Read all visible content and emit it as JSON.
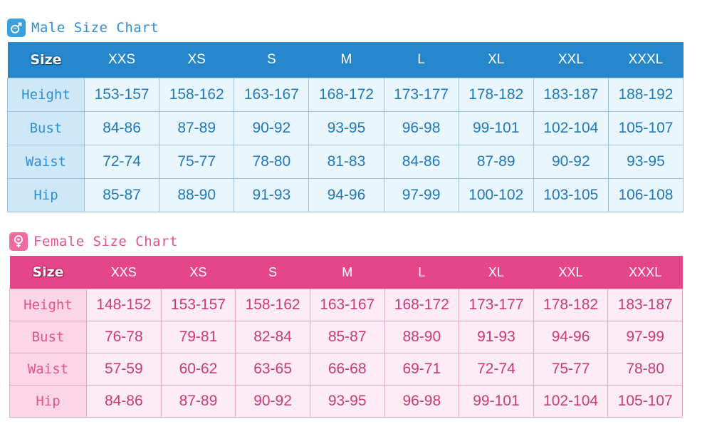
{
  "male": {
    "title": "Male Size Chart",
    "icon": "male-symbol-icon",
    "accent": "#2787cc",
    "corner_label": "Size",
    "sizes": [
      "XXS",
      "XS",
      "S",
      "M",
      "L",
      "XL",
      "XXL",
      "XXXL"
    ],
    "rows": [
      {
        "label": "Height",
        "values": [
          "153-157",
          "158-162",
          "163-167",
          "168-172",
          "173-177",
          "178-182",
          "183-187",
          "188-192"
        ]
      },
      {
        "label": "Bust",
        "values": [
          "84-86",
          "87-89",
          "90-92",
          "93-95",
          "96-98",
          "99-101",
          "102-104",
          "105-107"
        ]
      },
      {
        "label": "Waist",
        "values": [
          "72-74",
          "75-77",
          "78-80",
          "81-83",
          "84-86",
          "87-89",
          "90-92",
          "93-95"
        ]
      },
      {
        "label": "Hip",
        "values": [
          "85-87",
          "88-90",
          "91-93",
          "94-96",
          "97-99",
          "100-102",
          "103-105",
          "106-108"
        ]
      }
    ]
  },
  "female": {
    "title": "Female Size Chart",
    "icon": "female-symbol-icon",
    "accent": "#e5468a",
    "corner_label": "Size",
    "sizes": [
      "XXS",
      "XS",
      "S",
      "M",
      "L",
      "XL",
      "XXL",
      "XXXL"
    ],
    "rows": [
      {
        "label": "Height",
        "values": [
          "148-152",
          "153-157",
          "158-162",
          "163-167",
          "168-172",
          "173-177",
          "178-182",
          "183-187"
        ]
      },
      {
        "label": "Bust",
        "values": [
          "76-78",
          "79-81",
          "82-84",
          "85-87",
          "88-90",
          "91-93",
          "94-96",
          "97-99"
        ]
      },
      {
        "label": "Waist",
        "values": [
          "57-59",
          "60-62",
          "63-65",
          "66-68",
          "69-71",
          "72-74",
          "75-77",
          "78-80"
        ]
      },
      {
        "label": "Hip",
        "values": [
          "84-86",
          "87-89",
          "90-92",
          "93-95",
          "96-98",
          "99-101",
          "102-104",
          "105-107"
        ]
      }
    ]
  }
}
